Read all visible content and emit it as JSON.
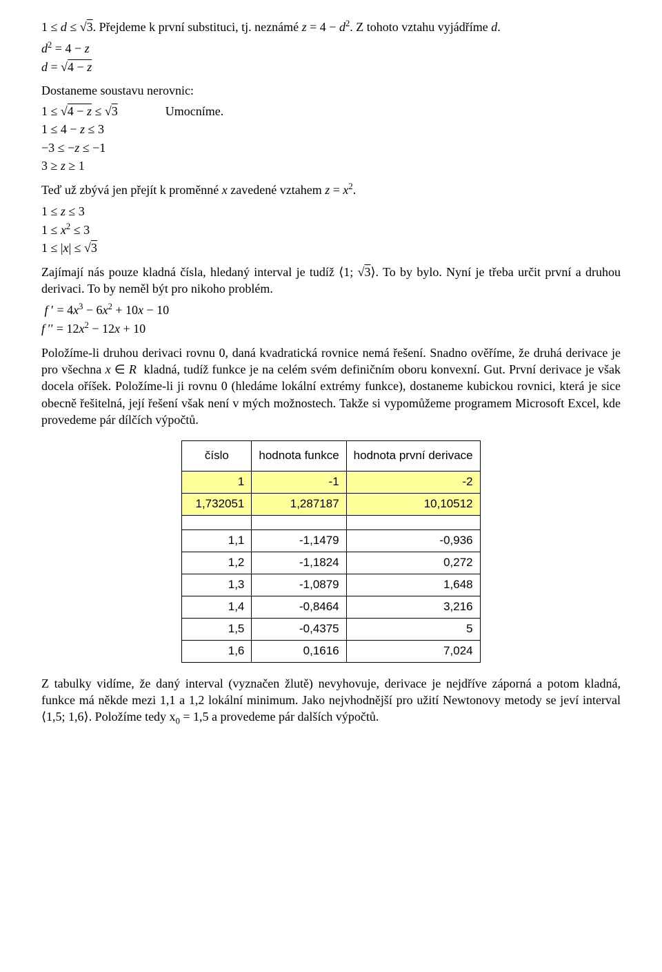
{
  "p_intro": {
    "pre": "1 ≤ d ≤ √3. Přejdeme k první substituci, tj. neznámé ",
    "mid": "z = 4 − d",
    "post": ". Z tohoto vztahu vyjádříme d."
  },
  "eq1": "d² = 4 − z",
  "eq2": "d = √(4 − z)",
  "p_system": "Dostaneme soustavu nerovnic:",
  "sys1_l": "1 ≤ √(4 − z) ≤ √3",
  "sys1_r": "Umocníme.",
  "sys2": "1 ≤ 4 − z ≤ 3",
  "sys3": "−3 ≤ −z ≤ −1",
  "sys4": "3 ≥ z ≥ 1",
  "p_now": {
    "pre": "Teď už zbývá jen přejít k proměnné x zavedené vztahem ",
    "eq": "z = x²",
    "post": "."
  },
  "lz1": "1 ≤ z ≤ 3",
  "lz2": "1 ≤ x² ≤ 3",
  "lz3": "1 ≤ |x| ≤ √3",
  "p_interval": {
    "pre": "Zajímají nás pouze kladná čísla, hledaný interval je tudíž ",
    "int": "⟨1; √3⟩",
    "post": ". To by bylo. Nyní je třeba určit první a druhou derivaci. To by neměl být pro nikoho problém."
  },
  "fprime": "f ′ = 4x³ − 6x² + 10x − 10",
  "fpp": "f ′′ = 12x² − 12x + 10",
  "p_body": "Položíme-li druhou derivaci rovnu 0, daná kvadratická rovnice nemá řešení. Snadno ověříme, že druhá derivace je pro všechna x ∈ R  kladná, tudíž funkce je na celém svém definičním oboru konvexní. Gut. První derivace je však docela oříšek. Položíme-li ji rovnu 0 (hledáme lokální extrémy funkce), dostaneme kubickou rovnici, která je sice obecně řešitelná, její řešení však není v mých možnostech. Takže si vypomůžeme programem Microsoft Excel, kde provedeme pár dílčích výpočtů.",
  "table": {
    "headers": [
      "číslo",
      "hodnota funkce",
      "hodnota první derivace"
    ],
    "highlight_rows": [
      0,
      1
    ],
    "rows_a": [
      [
        "1",
        "-1",
        "-2"
      ],
      [
        "1,732051",
        "1,287187",
        "10,10512"
      ]
    ],
    "rows_b": [
      [
        "1,1",
        "-1,1479",
        "-0,936"
      ],
      [
        "1,2",
        "-1,1824",
        "0,272"
      ],
      [
        "1,3",
        "-1,0879",
        "1,648"
      ],
      [
        "1,4",
        "-0,8464",
        "3,216"
      ],
      [
        "1,5",
        "-0,4375",
        "5"
      ],
      [
        "1,6",
        "0,1616",
        "7,024"
      ]
    ],
    "highlight_color": "#ffff99",
    "border_color": "#000000",
    "font_family": "Arial",
    "font_size_pt": 12
  },
  "p_after": {
    "pre": "Z tabulky vidíme, že daný interval (vyznačen žlutě) nevyhovuje, derivace je nejdříve záporná a potom kladná, funkce má někde mezi 1,1 a 1,2 lokální minimum. Jako nejvhodnější pro užití Newtonovy metody se jeví interval ",
    "int": "⟨1,5; 1,6⟩",
    "post": ". Položíme tedy x",
    "sub": "0",
    "tail": " = 1,5 a provedeme pár dalších výpočtů."
  }
}
